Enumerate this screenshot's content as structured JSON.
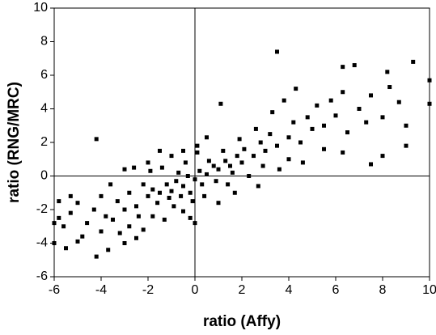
{
  "chart_data": {
    "type": "scatter",
    "xlabel": "ratio (Affy)",
    "ylabel": "ratio (RNG/MRC)",
    "xlim": [
      -6,
      10
    ],
    "ylim": [
      -6,
      10
    ],
    "xticks": [
      -6,
      -4,
      -2,
      0,
      2,
      4,
      6,
      8,
      10
    ],
    "yticks": [
      -6,
      -4,
      -2,
      0,
      2,
      4,
      6,
      8,
      10
    ],
    "color": "#000000",
    "x": [
      -2,
      -1.8,
      -1.5,
      -1.2,
      -1,
      -0.8,
      -0.5,
      -0.3,
      0,
      0.2,
      0.5,
      0.8,
      1,
      1.3,
      1.5,
      1.8,
      2,
      -2.2,
      -1.6,
      -1.1,
      -0.7,
      -0.2,
      0.3,
      0.6,
      1.2,
      1.6,
      2.1,
      -2.5,
      -2.8,
      -3,
      2.5,
      2.8,
      3,
      3.2,
      3.5,
      -3.3,
      -3.5,
      -2.4,
      -1.9,
      -1.4,
      -0.9,
      -0.4,
      0.1,
      0.4,
      0.9,
      1.4,
      1.9,
      2.3,
      2.6,
      2.9,
      4,
      4.2,
      4.5,
      4.8,
      5,
      5.2,
      5.5,
      5.8,
      6,
      6.3,
      6.5,
      7,
      7.3,
      7.5,
      8,
      8.3,
      8.7,
      9,
      3.8,
      4.3,
      3.3,
      4,
      4.6,
      5.5,
      3.6,
      2.7,
      1.7,
      1,
      0.5,
      -0.5,
      -1,
      -1.5,
      -2,
      -2.6,
      -3,
      -3.6,
      -4,
      -4.3,
      -4.6,
      -5,
      -5.3,
      -5.6,
      -5.8,
      -4.8,
      -4,
      -3.8,
      -3.2,
      -2.8,
      -2.2,
      -1.8,
      -1.3,
      -0.5,
      -0.2,
      0,
      -5,
      -3,
      -2.5,
      -5.3,
      -6,
      -5.8,
      3.5,
      9.3,
      10,
      10,
      6.8,
      6.3,
      8.2,
      -4.2,
      -6,
      -5.5,
      -4.2,
      -3.7,
      8,
      9,
      7.5,
      6.3,
      1.1,
      0.1,
      -0.1,
      -0.6
    ],
    "y": [
      -1.2,
      -0.8,
      -1,
      -0.5,
      -0.9,
      -0.3,
      -0.6,
      0,
      -0.2,
      0.3,
      0.1,
      0.6,
      0.4,
      0.9,
      0.6,
      1.2,
      0.8,
      -0.5,
      -1.6,
      -1.3,
      0.2,
      -1,
      -0.5,
      0.9,
      1.5,
      0.2,
      1.6,
      -1.8,
      -1,
      -2,
      1.2,
      2,
      1.5,
      2.5,
      1.8,
      -1.5,
      -2.6,
      -2.4,
      0.3,
      0.5,
      -1.8,
      0.8,
      1.4,
      -1.2,
      -0.3,
      -0.5,
      2.2,
      0,
      2.8,
      0.6,
      2.3,
      3.2,
      2,
      3.5,
      2.8,
      4.2,
      3,
      4.5,
      3.6,
      5,
      2.6,
      4,
      3.2,
      4.8,
      3.5,
      5.3,
      4.4,
      3,
      4.5,
      5.2,
      3.8,
      1,
      0.8,
      1.6,
      0.4,
      -0.6,
      -1,
      -1.6,
      2.3,
      1.5,
      1.2,
      1.5,
      0.8,
      0.5,
      0.4,
      -0.5,
      -1.2,
      -2,
      -2.8,
      -1.6,
      -2.2,
      -3,
      -2.5,
      -3.6,
      -3.3,
      -2.4,
      -3.4,
      -3,
      -3.2,
      -2.4,
      -2.6,
      -2.1,
      -2.5,
      -2.8,
      -3.9,
      -4,
      -3.7,
      -1.2,
      -2.8,
      -1.5,
      7.4,
      6.8,
      5.7,
      4.3,
      6.6,
      6.5,
      6.2,
      2.2,
      -4,
      -4.3,
      -4.8,
      -4.4,
      1.2,
      1.8,
      0.7,
      1.4,
      4.3,
      1.8,
      -1.5,
      -1.2
    ]
  }
}
